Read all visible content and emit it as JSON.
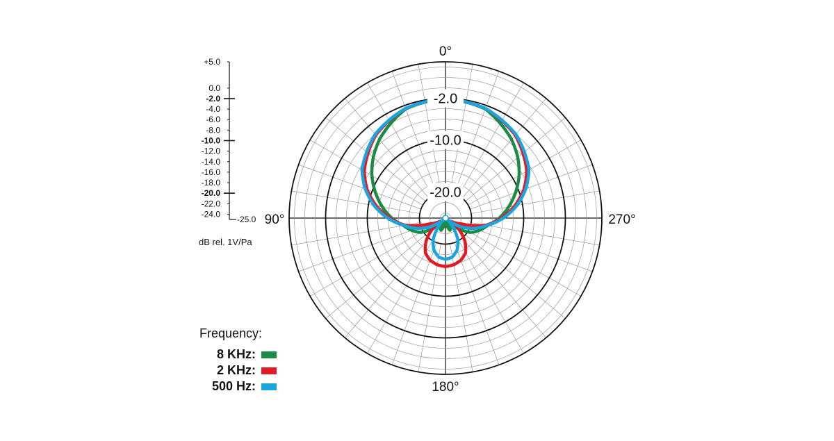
{
  "chart_data": {
    "type": "polar",
    "angle_labels": [
      "0°",
      "90°",
      "180°",
      "270°"
    ],
    "ring_labels": [
      "-2.0",
      "-10.0",
      "-20.0"
    ],
    "scale": {
      "labels": [
        "+5.0",
        "0.0",
        "-2.0",
        "-4.0",
        "-6.0",
        "-8.0",
        "-10.0",
        "-12.0",
        "-14.0",
        "-16.0",
        "-18.0",
        "-20.0",
        "-22.0",
        "-24.0",
        "-25.0"
      ],
      "values": [
        5,
        0,
        -2,
        -4,
        -6,
        -8,
        -10,
        -12,
        -14,
        -16,
        -18,
        -20,
        -22,
        -24,
        -25
      ],
      "bold": [
        "-2.0",
        "-10.0",
        "-20.0"
      ],
      "unit": "dB rel. 1V/Pa",
      "range": [
        -25,
        5
      ]
    },
    "radial_range_db": [
      -25,
      5
    ],
    "angle_step_deg": 10,
    "legend_title": "Frequency:",
    "series": [
      {
        "name": "8 KHz",
        "color": "#1a8c46",
        "angles": [
          0,
          20,
          40,
          50,
          60,
          70,
          80,
          90,
          100,
          110,
          120,
          130,
          140,
          150,
          160,
          170,
          180
        ],
        "db": [
          -2.1,
          -2.7,
          -5.3,
          -6.9,
          -8.7,
          -10.7,
          -12.7,
          -14.7,
          -16.8,
          -18.1,
          -19.5,
          -22,
          -24.4,
          -22.9,
          -22.5,
          -23.6,
          -25
        ]
      },
      {
        "name": "2 KHz",
        "color": "#e01b24",
        "angles": [
          0,
          20,
          40,
          60,
          70,
          80,
          90,
          100,
          110,
          120,
          130,
          140,
          150,
          160,
          170,
          180
        ],
        "db": [
          -2.1,
          -2.6,
          -4.2,
          -7,
          -9,
          -11.5,
          -14.3,
          -17.1,
          -21.7,
          -23.7,
          -21.7,
          -19.2,
          -17.3,
          -16.4,
          -15.9,
          -15.7
        ]
      },
      {
        "name": "500 Hz",
        "color": "#1ba5e0",
        "angles": [
          0,
          20,
          40,
          60,
          70,
          80,
          90,
          100,
          110,
          120,
          130,
          140,
          150,
          160,
          170,
          180
        ],
        "db": [
          -2.1,
          -2.6,
          -4,
          -6.5,
          -8.6,
          -11.1,
          -13.9,
          -16.9,
          -19.2,
          -21.7,
          -25,
          -22.9,
          -20.3,
          -18.5,
          -17.4,
          -17.1
        ]
      }
    ]
  }
}
